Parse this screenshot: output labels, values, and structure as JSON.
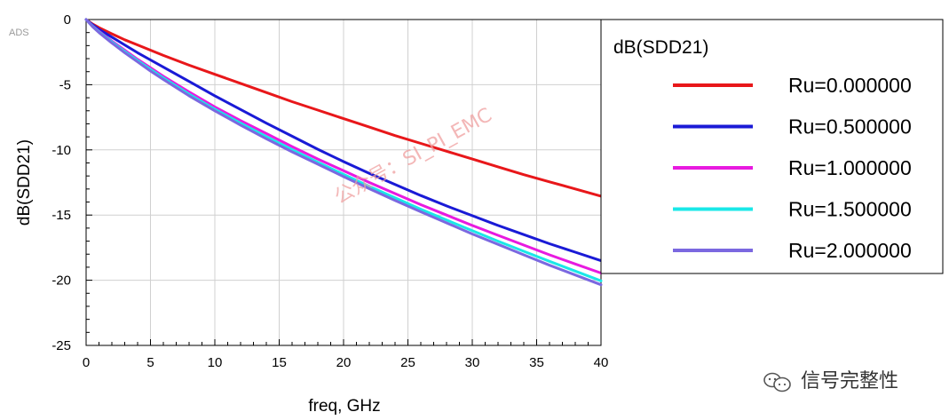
{
  "brand_tag": "ADS",
  "watermark": "公众号：SI_PI_EMC",
  "logo_text": "信号完整性",
  "colors": {
    "grid": "#d0d0d0",
    "frame": "#000000",
    "legend_border": "#000000"
  },
  "chart_data": {
    "type": "line",
    "title": "",
    "xlabel": "freq, GHz",
    "ylabel": "dB(SDD21)",
    "xlim": [
      0,
      40
    ],
    "ylim": [
      -25,
      0
    ],
    "xticks": [
      0,
      5,
      10,
      15,
      20,
      25,
      30,
      35,
      40
    ],
    "yticks": [
      0,
      -5,
      -10,
      -15,
      -20,
      -25
    ],
    "grid": true,
    "legend_position": "right",
    "legend_title": "dB(SDD21)",
    "x": [
      0,
      0.5,
      1,
      2,
      3,
      4,
      5,
      6,
      8,
      10,
      12,
      14,
      16,
      18,
      20,
      22,
      24,
      26,
      28,
      30,
      32,
      34,
      36,
      38,
      40
    ],
    "series": [
      {
        "name": "Ru=0.000000",
        "color": "#e8171a",
        "values": [
          0,
          -0.35,
          -0.62,
          -1.1,
          -1.55,
          -1.95,
          -2.35,
          -2.75,
          -3.5,
          -4.2,
          -4.9,
          -5.6,
          -6.3,
          -6.95,
          -7.6,
          -8.25,
          -8.9,
          -9.5,
          -10.1,
          -10.7,
          -11.3,
          -11.9,
          -12.45,
          -13.0,
          -13.55
        ]
      },
      {
        "name": "Ru=0.500000",
        "color": "#1a1ad6",
        "values": [
          0,
          -0.4,
          -0.75,
          -1.35,
          -1.95,
          -2.55,
          -3.1,
          -3.65,
          -4.75,
          -5.85,
          -6.9,
          -7.95,
          -8.95,
          -9.95,
          -10.9,
          -11.8,
          -12.65,
          -13.5,
          -14.3,
          -15.05,
          -15.8,
          -16.5,
          -17.2,
          -17.85,
          -18.5
        ]
      },
      {
        "name": "Ru=1.000000",
        "color": "#e81ae0",
        "values": [
          0,
          -0.5,
          -0.9,
          -1.65,
          -2.35,
          -3.05,
          -3.7,
          -4.35,
          -5.55,
          -6.7,
          -7.75,
          -8.75,
          -9.75,
          -10.7,
          -11.6,
          -12.5,
          -13.35,
          -14.2,
          -15.0,
          -15.8,
          -16.55,
          -17.3,
          -18.05,
          -18.75,
          -19.45
        ]
      },
      {
        "name": "Ru=1.500000",
        "color": "#1ae8e8",
        "values": [
          0,
          -0.52,
          -0.95,
          -1.72,
          -2.45,
          -3.15,
          -3.82,
          -4.48,
          -5.72,
          -6.88,
          -7.95,
          -8.98,
          -9.98,
          -10.95,
          -11.88,
          -12.8,
          -13.68,
          -14.55,
          -15.38,
          -16.2,
          -17.0,
          -17.78,
          -18.55,
          -19.3,
          -20.05
        ]
      },
      {
        "name": "Ru=2.000000",
        "color": "#7b68e0",
        "values": [
          0,
          -0.55,
          -1.0,
          -1.8,
          -2.55,
          -3.25,
          -3.95,
          -4.6,
          -5.85,
          -7.0,
          -8.1,
          -9.15,
          -10.15,
          -11.1,
          -12.05,
          -12.98,
          -13.88,
          -14.75,
          -15.6,
          -16.45,
          -17.25,
          -18.05,
          -18.85,
          -19.6,
          -20.35
        ]
      }
    ]
  }
}
